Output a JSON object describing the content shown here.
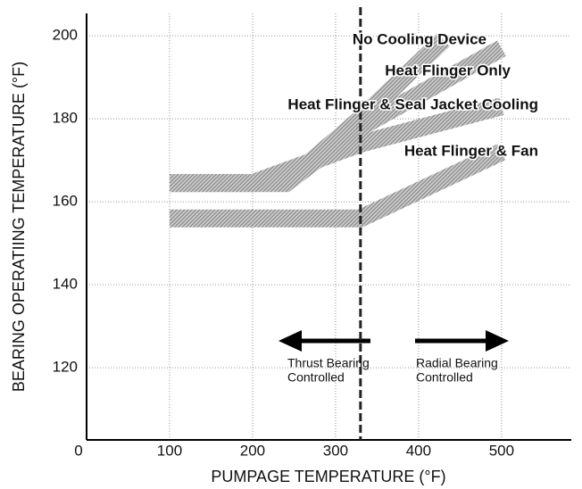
{
  "chart_data": {
    "type": "line",
    "xlabel": "PUMPAGE TEMPERATURE (°F)",
    "ylabel": "BEARING OPERATIING TEMPERATURE (°F)",
    "xlim": [
      0,
      584
    ],
    "ylim": [
      102.6,
      205.4
    ],
    "xticks": [
      0,
      100,
      200,
      300,
      400,
      500
    ],
    "yticks": [
      120,
      140,
      160,
      180,
      200
    ],
    "grid": true,
    "divider_x": 330,
    "series": [
      {
        "name": "No Cooling Device",
        "color": "#9a9a9a",
        "x": [
          100,
          240,
          330,
          430
        ],
        "values": [
          164.5,
          164.5,
          180,
          199
        ]
      },
      {
        "name": "Heat Flinger Only",
        "color": "#9a9a9a",
        "x": [
          100,
          240,
          330,
          500
        ],
        "values": [
          164.5,
          164.5,
          178,
          197
        ]
      },
      {
        "name": "Heat Flinger & Seal Jacket Cooling",
        "color": "#9a9a9a",
        "x": [
          100,
          200,
          330,
          500
        ],
        "values": [
          164.5,
          164.5,
          174,
          183
        ]
      },
      {
        "name": "Heat Flinger & Fan",
        "color": "#9a9a9a",
        "x": [
          100,
          330,
          500
        ],
        "values": [
          156,
          156,
          172
        ]
      }
    ],
    "annotations": [
      {
        "lines": [
          "Thrust Bearing",
          "Controlled"
        ]
      },
      {
        "lines": [
          "Radial Bearing",
          "Controlled"
        ]
      }
    ]
  }
}
